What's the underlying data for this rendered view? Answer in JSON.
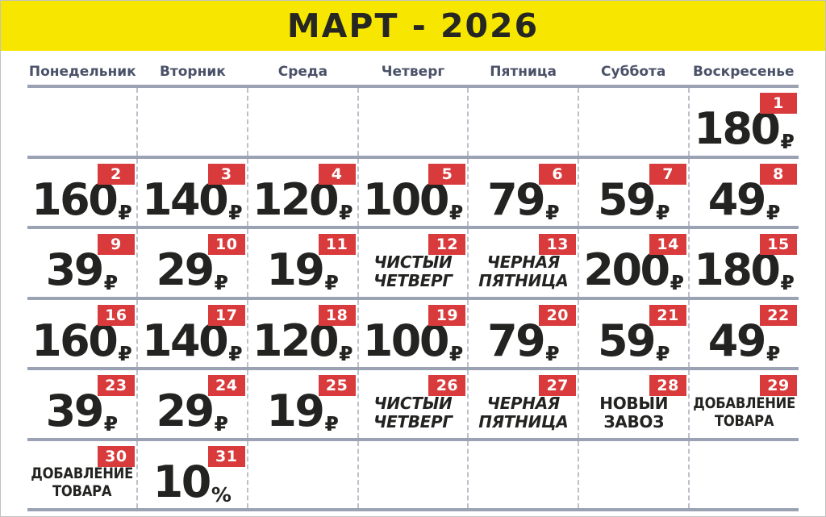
{
  "title": "МАРТ - 2026",
  "weekdays": [
    "Понедельник",
    "Вторник",
    "Среда",
    "Четверг",
    "Пятница",
    "Суббота",
    "Воскресенье"
  ],
  "colors": {
    "banner": "#F7E600",
    "badge": "#D93B3C",
    "line": "#9AA2B4",
    "dash": "#BDC0CA",
    "weekday": "#4A5168",
    "text": "#232321",
    "badge_text": "#FFFFFF",
    "bg": "#FFFFFF"
  },
  "calendar": {
    "rows": [
      [
        null,
        null,
        null,
        null,
        null,
        null,
        {
          "day": "1",
          "kind": "price",
          "value": "180",
          "unit": "₽"
        }
      ],
      [
        {
          "day": "2",
          "kind": "price",
          "value": "160",
          "unit": "₽"
        },
        {
          "day": "3",
          "kind": "price",
          "value": "140",
          "unit": "₽"
        },
        {
          "day": "4",
          "kind": "price",
          "value": "120",
          "unit": "₽"
        },
        {
          "day": "5",
          "kind": "price",
          "value": "100",
          "unit": "₽"
        },
        {
          "day": "6",
          "kind": "price",
          "value": "79",
          "unit": "₽"
        },
        {
          "day": "7",
          "kind": "price",
          "value": "59",
          "unit": "₽"
        },
        {
          "day": "8",
          "kind": "price",
          "value": "49",
          "unit": "₽"
        }
      ],
      [
        {
          "day": "9",
          "kind": "price",
          "value": "39",
          "unit": "₽"
        },
        {
          "day": "10",
          "kind": "price",
          "value": "29",
          "unit": "₽"
        },
        {
          "day": "11",
          "kind": "price",
          "value": "19",
          "unit": "₽"
        },
        {
          "day": "12",
          "kind": "label",
          "lines": [
            "ЧИСТЫЙ",
            "ЧЕТВЕРГ"
          ],
          "style": "italic"
        },
        {
          "day": "13",
          "kind": "label",
          "lines": [
            "ЧЕРНАЯ",
            "ПЯТНИЦА"
          ],
          "style": "italic"
        },
        {
          "day": "14",
          "kind": "price",
          "value": "200",
          "unit": "₽"
        },
        {
          "day": "15",
          "kind": "price",
          "value": "180",
          "unit": "₽"
        }
      ],
      [
        {
          "day": "16",
          "kind": "price",
          "value": "160",
          "unit": "₽"
        },
        {
          "day": "17",
          "kind": "price",
          "value": "140",
          "unit": "₽"
        },
        {
          "day": "18",
          "kind": "price",
          "value": "120",
          "unit": "₽"
        },
        {
          "day": "19",
          "kind": "price",
          "value": "100",
          "unit": "₽"
        },
        {
          "day": "20",
          "kind": "price",
          "value": "79",
          "unit": "₽"
        },
        {
          "day": "21",
          "kind": "price",
          "value": "59",
          "unit": "₽"
        },
        {
          "day": "22",
          "kind": "price",
          "value": "49",
          "unit": "₽"
        }
      ],
      [
        {
          "day": "23",
          "kind": "price",
          "value": "39",
          "unit": "₽"
        },
        {
          "day": "24",
          "kind": "price",
          "value": "29",
          "unit": "₽"
        },
        {
          "day": "25",
          "kind": "price",
          "value": "19",
          "unit": "₽"
        },
        {
          "day": "26",
          "kind": "label",
          "lines": [
            "ЧИСТЫЙ",
            "ЧЕТВЕРГ"
          ],
          "style": "italic"
        },
        {
          "day": "27",
          "kind": "label",
          "lines": [
            "ЧЕРНАЯ",
            "ПЯТНИЦА"
          ],
          "style": "italic"
        },
        {
          "day": "28",
          "kind": "label",
          "lines": [
            "НОВЫЙ",
            "ЗАВОЗ"
          ],
          "style": "normal"
        },
        {
          "day": "29",
          "kind": "label",
          "lines": [
            "ДОБАВЛЕНИЕ",
            "ТОВАРА"
          ],
          "style": "condensed"
        }
      ],
      [
        {
          "day": "30",
          "kind": "label",
          "lines": [
            "ДОБАВЛЕНИЕ",
            "ТОВАРА"
          ],
          "style": "condensed"
        },
        {
          "day": "31",
          "kind": "price",
          "value": "10",
          "unit": "%"
        },
        null,
        null,
        null,
        null,
        null
      ]
    ]
  }
}
